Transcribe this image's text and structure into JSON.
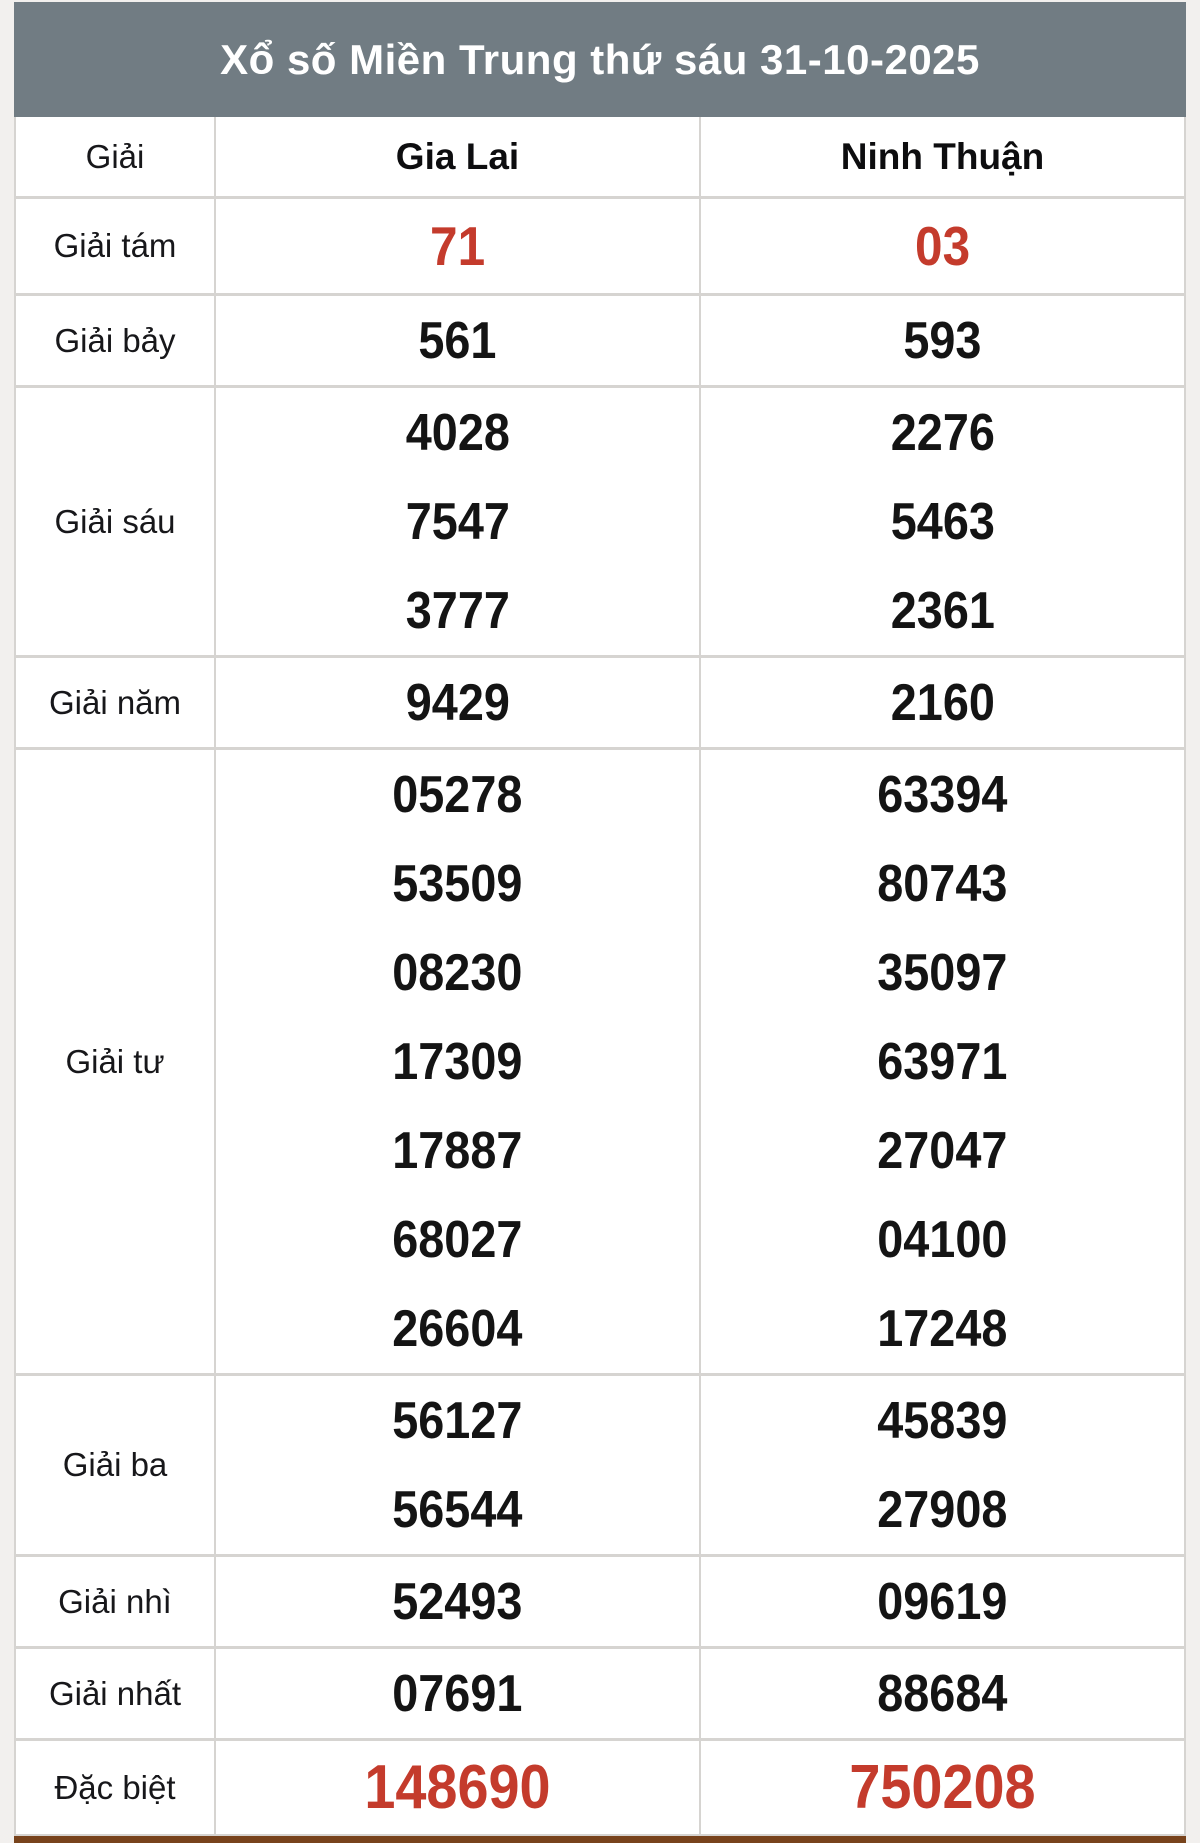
{
  "title": "Xổ số Miền Trung thứ sáu 31-10-2025",
  "table": {
    "prize_column_header": "Giải",
    "province_headers": [
      "Gia Lai",
      "Ninh Thuận"
    ],
    "rows": [
      {
        "label": "Giải tám",
        "emphasis": "red",
        "values": [
          [
            "71"
          ],
          [
            "03"
          ]
        ]
      },
      {
        "label": "Giải bảy",
        "emphasis": "",
        "values": [
          [
            "561"
          ],
          [
            "593"
          ]
        ]
      },
      {
        "label": "Giải sáu",
        "emphasis": "",
        "values": [
          [
            "4028",
            "7547",
            "3777"
          ],
          [
            "2276",
            "5463",
            "2361"
          ]
        ]
      },
      {
        "label": "Giải năm",
        "emphasis": "",
        "values": [
          [
            "9429"
          ],
          [
            "2160"
          ]
        ]
      },
      {
        "label": "Giải tư",
        "emphasis": "",
        "values": [
          [
            "05278",
            "53509",
            "08230",
            "17309",
            "17887",
            "68027",
            "26604"
          ],
          [
            "63394",
            "80743",
            "35097",
            "63971",
            "27047",
            "04100",
            "17248"
          ]
        ]
      },
      {
        "label": "Giải ba",
        "emphasis": "",
        "values": [
          [
            "56127",
            "56544"
          ],
          [
            "45839",
            "27908"
          ]
        ]
      },
      {
        "label": "Giải nhì",
        "emphasis": "",
        "values": [
          [
            "52493"
          ],
          [
            "09619"
          ]
        ]
      },
      {
        "label": "Giải nhất",
        "emphasis": "",
        "values": [
          [
            "07691"
          ],
          [
            "88684"
          ]
        ]
      },
      {
        "label": "Đặc biệt",
        "emphasis": "red",
        "values": [
          [
            "148690"
          ],
          [
            "750208"
          ]
        ]
      }
    ]
  },
  "colors": {
    "page_background": "#f2f0ee",
    "title_bar_background": "#717c83",
    "title_text": "#ffffff",
    "grid_border": "#d6d4d1",
    "number_black": "#141414",
    "highlight_red": "#c43b2c",
    "bottom_bar_brown": "#78431c"
  }
}
